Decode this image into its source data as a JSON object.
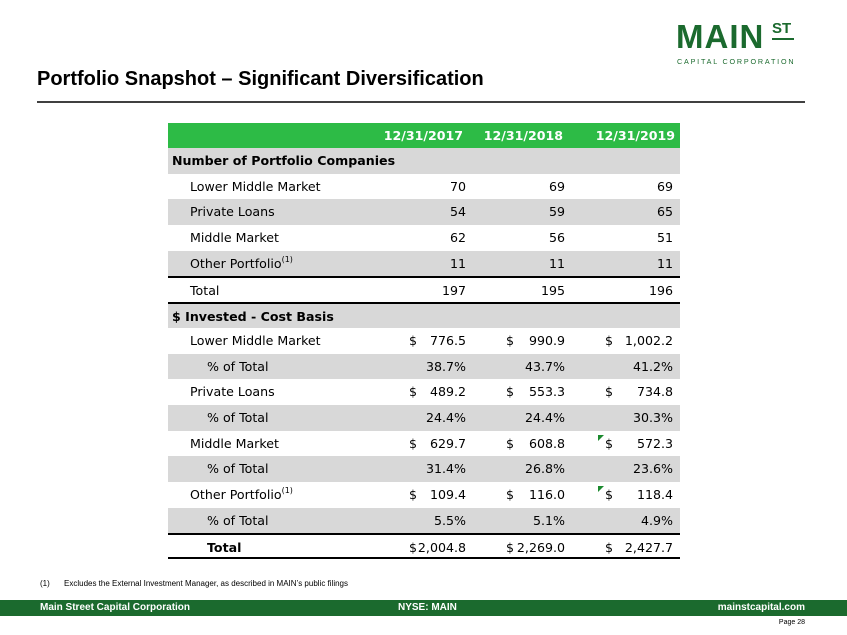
{
  "logo": {
    "main": "MAIN",
    "st": "ST",
    "sub": "CAPITAL CORPORATION"
  },
  "title": "Portfolio Snapshot – Significant Diversification",
  "table": {
    "headers": [
      "12/31/2017",
      "12/31/2018",
      "12/31/2019"
    ],
    "section1": {
      "label": "Number of Portfolio Companies",
      "rows": [
        {
          "label": "Lower Middle Market",
          "values": [
            "70",
            "69",
            "69"
          ]
        },
        {
          "label": "Private Loans",
          "values": [
            "54",
            "59",
            "65"
          ]
        },
        {
          "label": "Middle Market",
          "values": [
            "62",
            "56",
            "51"
          ]
        },
        {
          "label": "Other Portfolio",
          "sup": "(1)",
          "values": [
            "11",
            "11",
            "11"
          ]
        }
      ],
      "total": {
        "label": "Total",
        "values": [
          "197",
          "195",
          "196"
        ]
      }
    },
    "section2": {
      "label": "$ Invested - Cost Basis",
      "currency": "$",
      "rows": [
        {
          "label": "Lower Middle Market",
          "values": [
            "776.5",
            "990.9",
            "1,002.2"
          ],
          "pct_label": "% of Total",
          "pct": [
            "38.7%",
            "43.7%",
            "41.2%"
          ]
        },
        {
          "label": "Private Loans",
          "values": [
            "489.2",
            "553.3",
            "734.8"
          ],
          "pct_label": "% of Total",
          "pct": [
            "24.4%",
            "24.4%",
            "30.3%"
          ]
        },
        {
          "label": "Middle Market",
          "values": [
            "629.7",
            "608.8",
            "572.3"
          ],
          "pct_label": "% of Total",
          "pct": [
            "31.4%",
            "26.8%",
            "23.6%"
          ]
        },
        {
          "label": "Other Portfolio",
          "sup": "(1)",
          "values": [
            "109.4",
            "116.0",
            "118.4"
          ],
          "pct_label": "% of Total",
          "pct": [
            "5.5%",
            "5.1%",
            "4.9%"
          ]
        }
      ],
      "total": {
        "label": "Total",
        "values": [
          "2,004.8",
          "2,269.0",
          "2,427.7"
        ]
      }
    }
  },
  "footnote": {
    "num": "(1)",
    "text": "Excludes the External Investment Manager, as described in MAIN’s public filings"
  },
  "footer": {
    "left": "Main Street Capital Corporation",
    "center": "NYSE: MAIN",
    "right": "mainstcapital.com"
  },
  "page_label": "Page 28",
  "colors": {
    "brand_green": "#1b6a2e",
    "header_green": "#2dbb46",
    "row_grey": "#d8d8d8"
  }
}
